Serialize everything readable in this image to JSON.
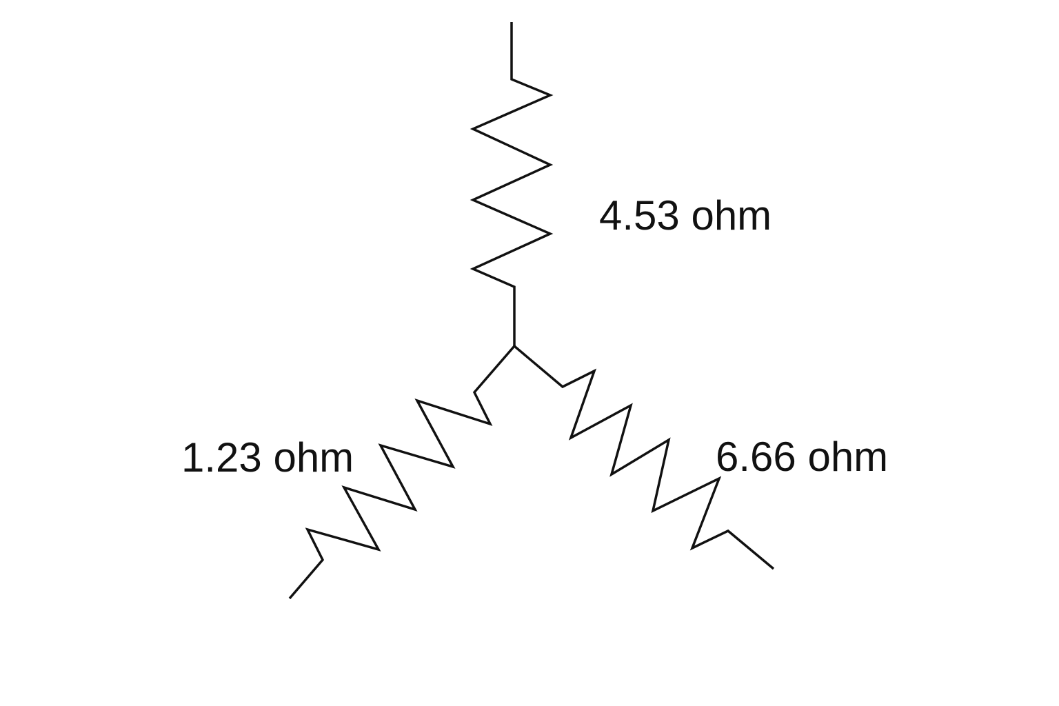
{
  "diagram": {
    "resistors": [
      {
        "id": "top",
        "label": "4.53 ohm"
      },
      {
        "id": "left",
        "label": "1.23 ohm"
      },
      {
        "id": "right",
        "label": "6.66 ohm"
      }
    ],
    "colors": {
      "line": "#111111",
      "background": "#ffffff"
    }
  }
}
